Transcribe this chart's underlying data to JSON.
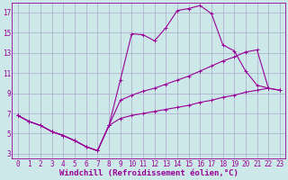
{
  "bg_color": "#cce8e8",
  "grid_color": "#aaaacc",
  "line_color": "#990099",
  "xlabel": "Windchill (Refroidissement éolien,°C)",
  "xlabel_fontsize": 6.5,
  "tick_fontsize": 5.5,
  "xlim": [
    -0.5,
    23.5
  ],
  "ylim": [
    2.5,
    18.0
  ],
  "yticks": [
    3,
    5,
    7,
    9,
    11,
    13,
    15,
    17
  ],
  "xticks": [
    0,
    1,
    2,
    3,
    4,
    5,
    6,
    7,
    8,
    9,
    10,
    11,
    12,
    13,
    14,
    15,
    16,
    17,
    18,
    19,
    20,
    21,
    22,
    23
  ],
  "line1_x": [
    0,
    1,
    2,
    3,
    4,
    5,
    6,
    7,
    8,
    9,
    10,
    11,
    12,
    13,
    14,
    15,
    16,
    17,
    18,
    19,
    20,
    21,
    22
  ],
  "line1_y": [
    6.8,
    6.2,
    5.8,
    5.2,
    4.8,
    4.3,
    3.7,
    3.3,
    5.8,
    10.3,
    14.9,
    14.8,
    14.2,
    15.5,
    17.2,
    17.4,
    17.7,
    16.9,
    13.8,
    13.2,
    11.2,
    9.8,
    9.5
  ],
  "line2_x": [
    0,
    1,
    2,
    3,
    4,
    5,
    6,
    7,
    8,
    9,
    10,
    11,
    12,
    13,
    14,
    15,
    16,
    17,
    18,
    19,
    20,
    21,
    22,
    23
  ],
  "line2_y": [
    6.8,
    6.2,
    5.8,
    5.2,
    4.8,
    4.3,
    3.7,
    3.3,
    5.8,
    8.3,
    8.8,
    9.2,
    9.5,
    9.9,
    10.3,
    10.7,
    11.2,
    11.7,
    12.2,
    12.6,
    13.1,
    13.3,
    9.5,
    9.3
  ],
  "line3_x": [
    0,
    1,
    2,
    3,
    4,
    5,
    6,
    7,
    8,
    9,
    10,
    11,
    12,
    13,
    14,
    15,
    16,
    17,
    18,
    19,
    20,
    21,
    22,
    23
  ],
  "line3_y": [
    6.8,
    6.2,
    5.8,
    5.2,
    4.8,
    4.3,
    3.7,
    3.3,
    5.8,
    6.5,
    6.8,
    7.0,
    7.2,
    7.4,
    7.6,
    7.8,
    8.1,
    8.3,
    8.6,
    8.8,
    9.1,
    9.3,
    9.5,
    9.3
  ]
}
